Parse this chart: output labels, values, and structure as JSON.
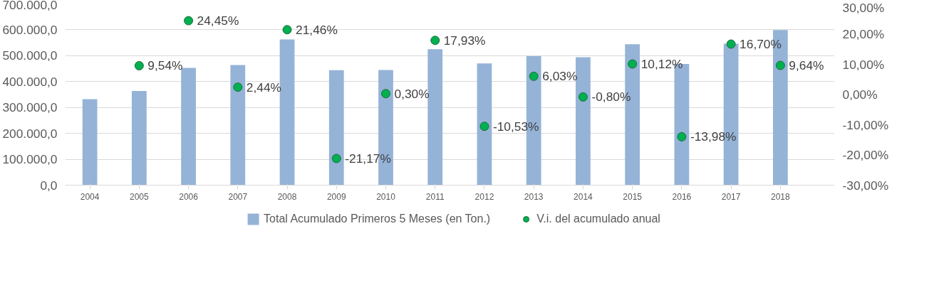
{
  "chart_data": {
    "type": "bar",
    "categories": [
      "2004",
      "2005",
      "2006",
      "2007",
      "2008",
      "2009",
      "2010",
      "2011",
      "2012",
      "2013",
      "2014",
      "2015",
      "2016",
      "2017",
      "2018"
    ],
    "series": [
      {
        "name": "Total Acumulado Primeros 5 Meses (en Ton.)",
        "color": "#95b3d7",
        "values": [
          332000,
          364000,
          453000,
          464000,
          563000,
          444000,
          445000,
          525000,
          470000,
          498000,
          494000,
          544000,
          468000,
          546000,
          599000
        ]
      },
      {
        "name": "V.i. del acumulado anual",
        "type": "scatter",
        "axis": "y2",
        "color": "#00b050",
        "values": [
          null,
          9.54,
          24.45,
          2.44,
          21.46,
          -21.17,
          0.3,
          17.93,
          -10.53,
          6.03,
          -0.8,
          10.12,
          -13.98,
          16.7,
          9.64
        ],
        "value_labels": [
          null,
          "9,54%",
          "24,45%",
          "2,44%",
          "21,46%",
          "-21,17%",
          "0,30%",
          "17,93%",
          "-10,53%",
          "6,03%",
          "-0,80%",
          "10,12%",
          "-13,98%",
          "16,70%",
          "9,64%"
        ]
      }
    ],
    "ylim": [
      0,
      700000
    ],
    "yticks": [
      {
        "value": 0,
        "label": "0,0"
      },
      {
        "value": 100000,
        "label": "100.000,0"
      },
      {
        "value": 200000,
        "label": "200.000,0"
      },
      {
        "value": 300000,
        "label": "300.000,0"
      },
      {
        "value": 400000,
        "label": "400.000,0"
      },
      {
        "value": 500000,
        "label": "500.000,0"
      },
      {
        "value": 600000,
        "label": "600.000,0"
      },
      {
        "value": 700000,
        "label": "700.000,0"
      }
    ],
    "y2lim": [
      -30,
      30
    ],
    "y2ticks": [
      {
        "value": -30,
        "label": "-30,00%"
      },
      {
        "value": -20,
        "label": "-20,00%"
      },
      {
        "value": -10,
        "label": "-10,00%"
      },
      {
        "value": 0,
        "label": "0,00%"
      },
      {
        "value": 10,
        "label": "10,00%"
      },
      {
        "value": 20,
        "label": "20,00%"
      },
      {
        "value": 30,
        "label": "30,00%"
      }
    ],
    "grid": "y",
    "legend": "bottom",
    "marker": "circle"
  }
}
